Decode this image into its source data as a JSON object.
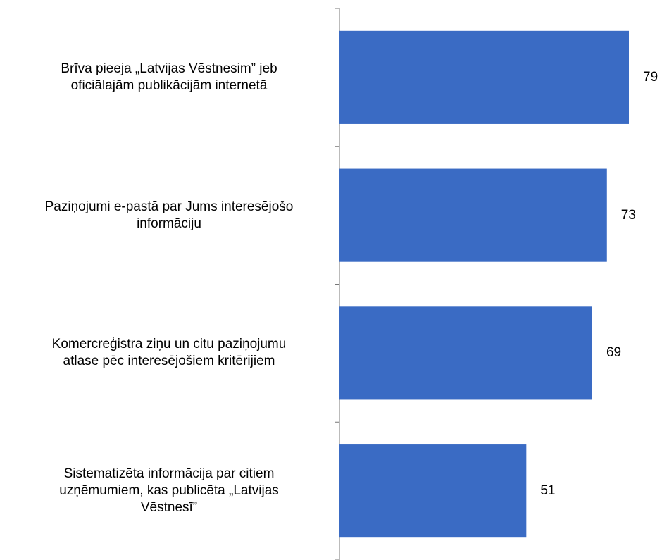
{
  "chart_data": {
    "type": "bar",
    "orientation": "horizontal",
    "categories": [
      "Brīva pieeja „Latvijas Vēstnesim” jeb\noficiālajām publikācijām internetā",
      "Paziņojumi e-pastā par Jums interesējošo\ninformāciju",
      "Komercreģistra ziņu un citu paziņojumu\natlase pēc interesējošiem kritērijiem",
      "Sistematizēta informācija par citiem\nuzņēmumiem, kas publicēta „Latvijas\nVēstnesī”"
    ],
    "values": [
      79,
      73,
      69,
      51
    ],
    "color": "#3a6bc4"
  }
}
